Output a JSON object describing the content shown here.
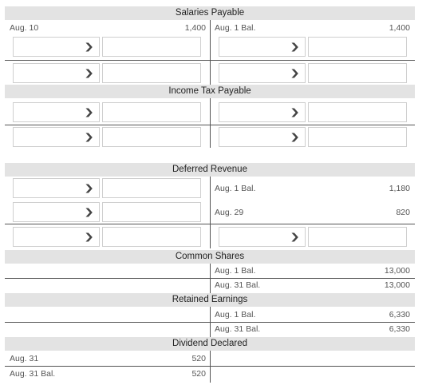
{
  "chevron": "❯",
  "salaries_payable": {
    "title": "Salaries Payable",
    "left_label": "Aug. 10",
    "left_amount": "1,400",
    "right_label": "Aug. 1 Bal.",
    "right_amount": "1,400"
  },
  "income_tax_payable": {
    "title": "Income Tax Payable"
  },
  "deferred_revenue": {
    "title": "Deferred Revenue",
    "rows": [
      {
        "label": "Aug. 1 Bal.",
        "amount": "1,180"
      },
      {
        "label": "Aug. 29",
        "amount": "820"
      }
    ]
  },
  "common_shares": {
    "title": "Common Shares",
    "rows": [
      {
        "label": "Aug. 1 Bal.",
        "amount": "13,000"
      },
      {
        "label": "Aug. 31 Bal.",
        "amount": "13,000"
      }
    ]
  },
  "retained_earnings": {
    "title": "Retained Earnings",
    "rows": [
      {
        "label": "Aug. 1 Bal.",
        "amount": "6,330"
      },
      {
        "label": "Aug. 31 Bal.",
        "amount": "6,330"
      }
    ]
  },
  "dividend_declared": {
    "title": "Dividend Declared",
    "rows": [
      {
        "label": "Aug. 31",
        "amount": "520"
      },
      {
        "label": "Aug. 31 Bal.",
        "amount": "520"
      }
    ]
  }
}
